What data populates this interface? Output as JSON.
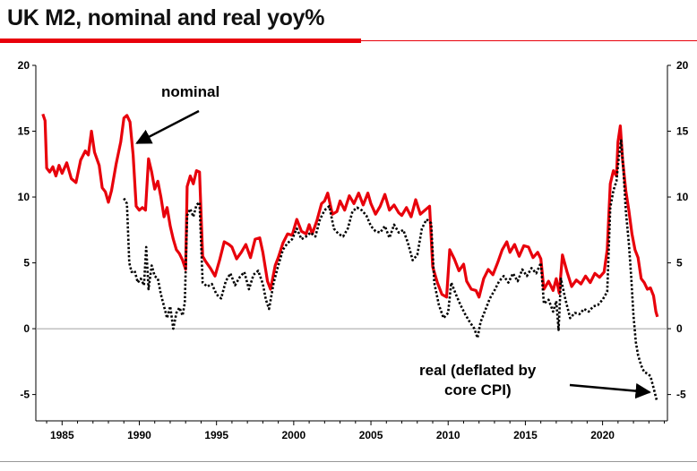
{
  "chart_data": {
    "type": "line",
    "title": "UK M2, nominal and real yoy%",
    "xlim": [
      1983.3,
      2024.2
    ],
    "ylim": [
      -7,
      20
    ],
    "x_ticks": [
      1985,
      1990,
      1995,
      2000,
      2005,
      2010,
      2015,
      2020
    ],
    "y_ticks": [
      -5,
      0,
      5,
      10,
      15,
      20
    ],
    "grid": false,
    "zero_line": true,
    "legend": "none",
    "series": [
      {
        "name": "nominal",
        "color": "#e8000b",
        "style": "solid",
        "points": [
          [
            1983.75,
            16.3
          ],
          [
            1983.9,
            15.8
          ],
          [
            1984.0,
            12.2
          ],
          [
            1984.2,
            11.9
          ],
          [
            1984.4,
            12.3
          ],
          [
            1984.6,
            11.6
          ],
          [
            1984.8,
            12.4
          ],
          [
            1985.0,
            11.8
          ],
          [
            1985.3,
            12.6
          ],
          [
            1985.6,
            11.4
          ],
          [
            1985.9,
            11.1
          ],
          [
            1986.2,
            12.8
          ],
          [
            1986.5,
            13.5
          ],
          [
            1986.7,
            13.2
          ],
          [
            1986.9,
            15.0
          ],
          [
            1987.1,
            13.4
          ],
          [
            1987.4,
            12.4
          ],
          [
            1987.6,
            10.7
          ],
          [
            1987.8,
            10.4
          ],
          [
            1988.0,
            9.6
          ],
          [
            1988.2,
            10.5
          ],
          [
            1988.5,
            12.5
          ],
          [
            1988.8,
            14.2
          ],
          [
            1989.0,
            16.0
          ],
          [
            1989.2,
            16.2
          ],
          [
            1989.4,
            15.7
          ],
          [
            1989.6,
            13.2
          ],
          [
            1989.8,
            9.3
          ],
          [
            1990.0,
            9.0
          ],
          [
            1990.2,
            9.2
          ],
          [
            1990.4,
            9.0
          ],
          [
            1990.6,
            12.9
          ],
          [
            1990.8,
            11.9
          ],
          [
            1991.0,
            10.6
          ],
          [
            1991.2,
            11.2
          ],
          [
            1991.4,
            10.0
          ],
          [
            1991.6,
            8.5
          ],
          [
            1991.8,
            9.2
          ],
          [
            1992.0,
            7.8
          ],
          [
            1992.2,
            6.8
          ],
          [
            1992.4,
            6.0
          ],
          [
            1992.6,
            5.7
          ],
          [
            1992.8,
            5.2
          ],
          [
            1993.0,
            4.5
          ],
          [
            1993.1,
            10.8
          ],
          [
            1993.3,
            11.6
          ],
          [
            1993.5,
            11.0
          ],
          [
            1993.7,
            12.0
          ],
          [
            1993.9,
            11.9
          ],
          [
            1994.1,
            5.5
          ],
          [
            1994.3,
            5.1
          ],
          [
            1994.6,
            4.6
          ],
          [
            1994.9,
            4.0
          ],
          [
            1995.2,
            5.2
          ],
          [
            1995.5,
            6.6
          ],
          [
            1995.8,
            6.4
          ],
          [
            1996.0,
            6.2
          ],
          [
            1996.3,
            5.3
          ],
          [
            1996.6,
            5.8
          ],
          [
            1996.9,
            6.4
          ],
          [
            1997.2,
            5.4
          ],
          [
            1997.5,
            6.8
          ],
          [
            1997.8,
            6.9
          ],
          [
            1998.0,
            5.8
          ],
          [
            1998.3,
            3.6
          ],
          [
            1998.5,
            3.0
          ],
          [
            1998.8,
            4.8
          ],
          [
            1999.0,
            5.4
          ],
          [
            1999.3,
            6.5
          ],
          [
            1999.6,
            7.2
          ],
          [
            1999.9,
            7.1
          ],
          [
            2000.2,
            8.3
          ],
          [
            2000.5,
            7.4
          ],
          [
            2000.8,
            7.2
          ],
          [
            2001.0,
            7.9
          ],
          [
            2001.2,
            7.2
          ],
          [
            2001.5,
            8.2
          ],
          [
            2001.8,
            9.5
          ],
          [
            2002.0,
            9.7
          ],
          [
            2002.2,
            10.3
          ],
          [
            2002.5,
            8.7
          ],
          [
            2002.8,
            8.9
          ],
          [
            2003.0,
            9.7
          ],
          [
            2003.3,
            9.0
          ],
          [
            2003.6,
            10.1
          ],
          [
            2003.9,
            9.5
          ],
          [
            2004.2,
            10.3
          ],
          [
            2004.5,
            9.4
          ],
          [
            2004.8,
            10.3
          ],
          [
            2005.0,
            9.5
          ],
          [
            2005.3,
            8.7
          ],
          [
            2005.6,
            9.3
          ],
          [
            2005.9,
            10.2
          ],
          [
            2006.2,
            9.0
          ],
          [
            2006.5,
            9.4
          ],
          [
            2006.8,
            8.8
          ],
          [
            2007.0,
            8.6
          ],
          [
            2007.3,
            9.2
          ],
          [
            2007.6,
            8.5
          ],
          [
            2007.9,
            9.8
          ],
          [
            2008.2,
            8.7
          ],
          [
            2008.5,
            9.0
          ],
          [
            2008.8,
            9.3
          ],
          [
            2009.0,
            4.7
          ],
          [
            2009.3,
            3.5
          ],
          [
            2009.6,
            2.6
          ],
          [
            2009.9,
            2.4
          ],
          [
            2010.1,
            6.0
          ],
          [
            2010.4,
            5.3
          ],
          [
            2010.7,
            4.4
          ],
          [
            2011.0,
            4.9
          ],
          [
            2011.2,
            3.6
          ],
          [
            2011.5,
            3.0
          ],
          [
            2011.8,
            2.9
          ],
          [
            2012.0,
            2.4
          ],
          [
            2012.3,
            3.8
          ],
          [
            2012.6,
            4.5
          ],
          [
            2012.9,
            4.1
          ],
          [
            2013.2,
            5.0
          ],
          [
            2013.5,
            6.0
          ],
          [
            2013.8,
            6.6
          ],
          [
            2014.0,
            5.8
          ],
          [
            2014.3,
            6.4
          ],
          [
            2014.6,
            5.5
          ],
          [
            2014.9,
            6.3
          ],
          [
            2015.2,
            6.2
          ],
          [
            2015.5,
            5.4
          ],
          [
            2015.8,
            5.8
          ],
          [
            2016.0,
            5.3
          ],
          [
            2016.2,
            3.0
          ],
          [
            2016.5,
            3.6
          ],
          [
            2016.8,
            2.9
          ],
          [
            2017.0,
            3.8
          ],
          [
            2017.2,
            2.7
          ],
          [
            2017.4,
            5.6
          ],
          [
            2017.7,
            4.3
          ],
          [
            2018.0,
            3.2
          ],
          [
            2018.3,
            3.7
          ],
          [
            2018.6,
            3.4
          ],
          [
            2018.9,
            4.0
          ],
          [
            2019.2,
            3.5
          ],
          [
            2019.5,
            4.2
          ],
          [
            2019.8,
            3.9
          ],
          [
            2020.1,
            4.3
          ],
          [
            2020.3,
            6.0
          ],
          [
            2020.5,
            11.0
          ],
          [
            2020.7,
            12.0
          ],
          [
            2020.9,
            11.6
          ],
          [
            2021.0,
            14.2
          ],
          [
            2021.15,
            15.4
          ],
          [
            2021.3,
            12.8
          ],
          [
            2021.5,
            10.5
          ],
          [
            2021.7,
            9.0
          ],
          [
            2021.9,
            7.2
          ],
          [
            2022.1,
            6.0
          ],
          [
            2022.3,
            5.4
          ],
          [
            2022.5,
            3.8
          ],
          [
            2022.7,
            3.5
          ],
          [
            2022.9,
            3.0
          ],
          [
            2023.1,
            3.1
          ],
          [
            2023.3,
            2.5
          ],
          [
            2023.45,
            1.3
          ],
          [
            2023.55,
            0.9
          ]
        ]
      },
      {
        "name": "real (deflated by core CPI)",
        "color": "#000000",
        "style": "dotted",
        "points": [
          [
            1989.0,
            9.9
          ],
          [
            1989.2,
            9.5
          ],
          [
            1989.35,
            5.0
          ],
          [
            1989.5,
            4.3
          ],
          [
            1989.7,
            4.4
          ],
          [
            1989.9,
            3.5
          ],
          [
            1990.1,
            3.8
          ],
          [
            1990.3,
            3.3
          ],
          [
            1990.45,
            6.2
          ],
          [
            1990.6,
            3.0
          ],
          [
            1990.8,
            4.8
          ],
          [
            1991.0,
            4.0
          ],
          [
            1991.2,
            3.8
          ],
          [
            1991.4,
            2.6
          ],
          [
            1991.6,
            1.7
          ],
          [
            1991.8,
            0.8
          ],
          [
            1992.0,
            1.7
          ],
          [
            1992.2,
            0.0
          ],
          [
            1992.4,
            1.2
          ],
          [
            1992.6,
            1.6
          ],
          [
            1992.8,
            1.0
          ],
          [
            1992.95,
            2.0
          ],
          [
            1993.1,
            8.6
          ],
          [
            1993.3,
            9.1
          ],
          [
            1993.5,
            8.5
          ],
          [
            1993.7,
            9.4
          ],
          [
            1993.9,
            9.6
          ],
          [
            1994.1,
            3.5
          ],
          [
            1994.4,
            3.2
          ],
          [
            1994.7,
            3.4
          ],
          [
            1995.0,
            2.6
          ],
          [
            1995.3,
            2.3
          ],
          [
            1995.6,
            3.6
          ],
          [
            1995.9,
            4.2
          ],
          [
            1996.2,
            3.3
          ],
          [
            1996.5,
            3.9
          ],
          [
            1996.8,
            4.3
          ],
          [
            1997.1,
            3.0
          ],
          [
            1997.4,
            4.1
          ],
          [
            1997.7,
            4.4
          ],
          [
            1998.0,
            3.4
          ],
          [
            1998.2,
            2.2
          ],
          [
            1998.4,
            1.5
          ],
          [
            1998.7,
            3.5
          ],
          [
            1999.0,
            4.8
          ],
          [
            1999.3,
            6.0
          ],
          [
            1999.6,
            6.5
          ],
          [
            1999.9,
            6.8
          ],
          [
            2000.2,
            7.6
          ],
          [
            2000.5,
            6.8
          ],
          [
            2000.8,
            7.0
          ],
          [
            2001.1,
            7.3
          ],
          [
            2001.4,
            7.0
          ],
          [
            2001.7,
            8.3
          ],
          [
            2002.0,
            9.0
          ],
          [
            2002.3,
            9.3
          ],
          [
            2002.6,
            7.6
          ],
          [
            2002.9,
            7.2
          ],
          [
            2003.2,
            7.0
          ],
          [
            2003.5,
            7.6
          ],
          [
            2003.8,
            8.9
          ],
          [
            2004.1,
            9.2
          ],
          [
            2004.4,
            9.0
          ],
          [
            2004.7,
            8.6
          ],
          [
            2005.0,
            7.8
          ],
          [
            2005.3,
            7.4
          ],
          [
            2005.6,
            7.3
          ],
          [
            2005.9,
            7.8
          ],
          [
            2006.2,
            6.9
          ],
          [
            2006.5,
            7.9
          ],
          [
            2006.8,
            7.3
          ],
          [
            2007.1,
            7.5
          ],
          [
            2007.4,
            6.5
          ],
          [
            2007.7,
            5.2
          ],
          [
            2008.0,
            5.6
          ],
          [
            2008.3,
            7.6
          ],
          [
            2008.6,
            8.3
          ],
          [
            2008.9,
            8.0
          ],
          [
            2009.1,
            3.5
          ],
          [
            2009.4,
            1.8
          ],
          [
            2009.7,
            0.8
          ],
          [
            2010.0,
            1.2
          ],
          [
            2010.2,
            3.5
          ],
          [
            2010.5,
            2.6
          ],
          [
            2010.8,
            1.8
          ],
          [
            2011.1,
            1.1
          ],
          [
            2011.4,
            0.5
          ],
          [
            2011.7,
            0.0
          ],
          [
            2011.9,
            -0.7
          ],
          [
            2012.1,
            0.5
          ],
          [
            2012.4,
            1.4
          ],
          [
            2012.7,
            2.3
          ],
          [
            2013.0,
            2.9
          ],
          [
            2013.3,
            3.6
          ],
          [
            2013.6,
            4.0
          ],
          [
            2013.9,
            3.5
          ],
          [
            2014.2,
            4.2
          ],
          [
            2014.5,
            3.6
          ],
          [
            2014.8,
            4.5
          ],
          [
            2015.1,
            4.0
          ],
          [
            2015.4,
            4.6
          ],
          [
            2015.7,
            4.2
          ],
          [
            2016.0,
            5.0
          ],
          [
            2016.2,
            1.9
          ],
          [
            2016.5,
            2.2
          ],
          [
            2016.8,
            1.3
          ],
          [
            2017.0,
            2.1
          ],
          [
            2017.15,
            -0.1
          ],
          [
            2017.3,
            3.8
          ],
          [
            2017.6,
            2.2
          ],
          [
            2017.9,
            0.8
          ],
          [
            2018.2,
            1.2
          ],
          [
            2018.5,
            1.1
          ],
          [
            2018.8,
            1.5
          ],
          [
            2019.1,
            1.3
          ],
          [
            2019.4,
            1.7
          ],
          [
            2019.7,
            1.8
          ],
          [
            2020.0,
            2.2
          ],
          [
            2020.3,
            2.8
          ],
          [
            2020.5,
            9.2
          ],
          [
            2020.7,
            10.5
          ],
          [
            2020.9,
            11.2
          ],
          [
            2021.05,
            13.0
          ],
          [
            2021.2,
            14.3
          ],
          [
            2021.35,
            12.0
          ],
          [
            2021.5,
            9.0
          ],
          [
            2021.7,
            6.5
          ],
          [
            2021.85,
            4.0
          ],
          [
            2022.0,
            1.0
          ],
          [
            2022.15,
            -1.0
          ],
          [
            2022.3,
            -2.0
          ],
          [
            2022.5,
            -2.8
          ],
          [
            2022.7,
            -3.3
          ],
          [
            2022.9,
            -3.4
          ],
          [
            2023.1,
            -3.6
          ],
          [
            2023.3,
            -4.5
          ],
          [
            2023.5,
            -5.4
          ]
        ]
      }
    ],
    "annotations": [
      {
        "text": "nominal",
        "target": [
          1989.55,
          14.3
        ]
      },
      {
        "text": "real (deflated by",
        "text2": "core CPI)",
        "target": [
          2023.4,
          -4.8
        ]
      }
    ]
  }
}
